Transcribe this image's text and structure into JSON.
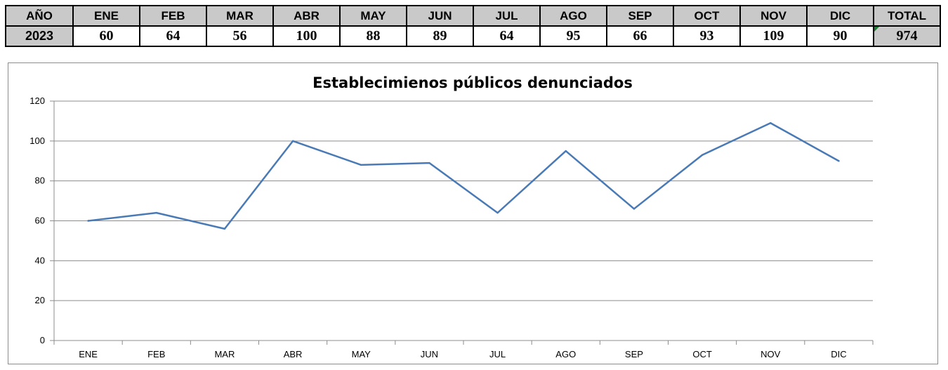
{
  "table": {
    "headers": [
      "AÑO",
      "ENE",
      "FEB",
      "MAR",
      "ABR",
      "MAY",
      "JUN",
      "JUL",
      "AGO",
      "SEP",
      "OCT",
      "NOV",
      "DIC",
      "TOTAL"
    ],
    "year": "2023",
    "values": [
      "60",
      "64",
      "56",
      "100",
      "88",
      "89",
      "64",
      "95",
      "66",
      "93",
      "109",
      "90"
    ],
    "total": "974"
  },
  "colors": {
    "header_bg": "#c9c9c9",
    "line": "#4a7ab5",
    "grid": "#8c8c8c",
    "total_marker": "#1e7b34"
  },
  "chart_data": {
    "type": "line",
    "title": "Establecimienos públicos denunciados",
    "categories": [
      "ENE",
      "FEB",
      "MAR",
      "ABR",
      "MAY",
      "JUN",
      "JUL",
      "AGO",
      "SEP",
      "OCT",
      "NOV",
      "DIC"
    ],
    "values": [
      60,
      64,
      56,
      100,
      88,
      89,
      64,
      95,
      66,
      93,
      109,
      90
    ],
    "ylim": [
      0,
      120
    ],
    "yticks": [
      0,
      20,
      40,
      60,
      80,
      100,
      120
    ],
    "grid": true,
    "legend": "none",
    "xlabel": "",
    "ylabel": ""
  }
}
